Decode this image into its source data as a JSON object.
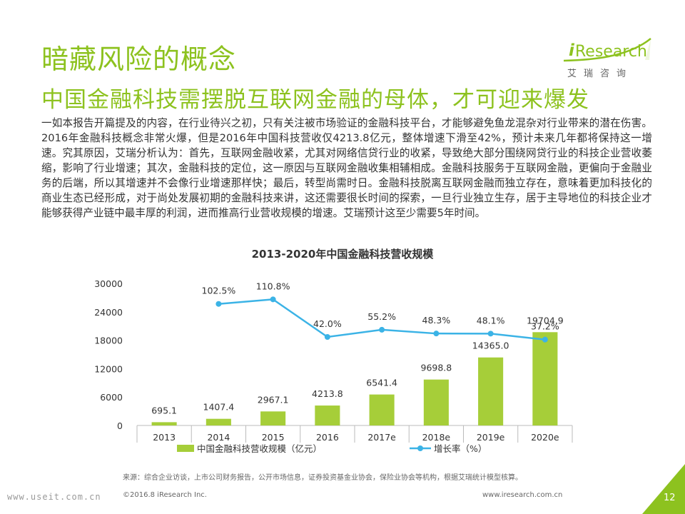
{
  "title_main": "暗藏风险的概念",
  "title_sub": "中国金融科技需摆脱互联网金融的母体，才可迎来爆发",
  "logo": {
    "brand_i": "i",
    "brand_rest": "Research",
    "subtitle": "艾瑞咨询"
  },
  "body_text": "一如本报告开篇提及的内容，在行业待兴之初，只有关注被市场验证的金融科技平台，才能够避免鱼龙混杂对行业带来的潜在伤害。2016年金融科技概念非常火爆，但是2016年中国科技营收仅4213.8亿元，整体增速下滑至42%，预计未来几年都将保持这一增速。究其原因，艾瑞分析认为：首先，互联网金融收紧，尤其对网络信贷行业的收紧，导致绝大部分围绕网贷行业的科技企业营收萎缩，影响了行业增速；其次，金融科技的定位，这一原因与互联网金融收集相辅相成。金融科技服务于互联网金融，更偏向于金融业务的后端，所以其增速并不会像行业增速那样快；最后，转型尚需时日。金融科技脱离互联网金融而独立存在，意味着更加科技化的商业生态已经形成，对于尚处发展初期的金融科技来讲，这还需要很长时间的探索，一旦行业独立生存，居于主导地位的科技企业才能够获得产业链中最丰厚的利润，进而推高行业营收规模的增速。艾瑞预计这至少需要5年时间。",
  "chart_data": {
    "type": "bar",
    "title": "2013-2020年中国金融科技营收规模",
    "categories": [
      "2013",
      "2014",
      "2015",
      "2016",
      "2017e",
      "2018e",
      "2019e",
      "2020e"
    ],
    "series": [
      {
        "name": "中国金融科技营收规模（亿元）",
        "type": "bar",
        "color": "#a6ce39",
        "values": [
          695.1,
          1407.4,
          2967.1,
          4213.8,
          6541.4,
          9698.8,
          14365.0,
          19704.9
        ],
        "labels": [
          "695.1",
          "1407.4",
          "2967.1",
          "4213.8",
          "6541.4",
          "9698.8",
          "14365.0",
          "19704.9"
        ]
      },
      {
        "name": "增长率（%）",
        "type": "line",
        "color": "#3bb3e6",
        "values": [
          null,
          102.5,
          110.8,
          42.0,
          55.2,
          48.3,
          48.1,
          37.2
        ],
        "labels": [
          "",
          "102.5%",
          "110.8%",
          "42.0%",
          "55.2%",
          "48.3%",
          "48.1%",
          "37.2%"
        ]
      }
    ],
    "y_axis": {
      "min": 0,
      "max": 30000,
      "ticks": [
        "0",
        "6000",
        "12000",
        "18000",
        "24000",
        "30000"
      ]
    },
    "line_scale": {
      "min": -120,
      "max": 140
    },
    "legend_position": "bottom",
    "grid": false
  },
  "footer": {
    "source": "来源：综合企业访谈，上市公司财务报告，公开市场信息，证券投资基金业协会，保险业协会等机构，根据艾瑞统计模型核算。",
    "copyright": "©2016.8 iResearch Inc.",
    "url": "www.iresearch.com.cn",
    "page_number": "12",
    "watermark": "www.useit.com.cn"
  },
  "colors": {
    "accent": "#8dc21f",
    "bar": "#a6ce39",
    "line": "#3bb3e6"
  }
}
